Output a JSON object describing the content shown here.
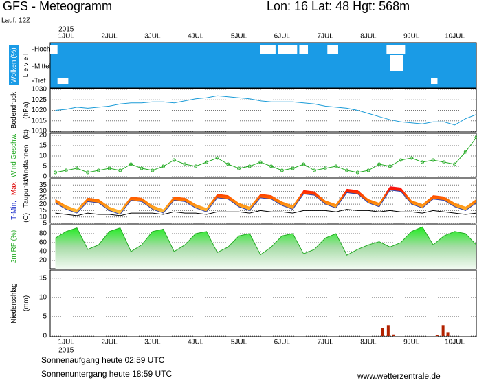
{
  "header": {
    "title": "GFS - Meteogramm",
    "location": "Lon: 16 Lat: 48 Hgt: 568m",
    "run": "Lauf: 12Z"
  },
  "time_axis": {
    "xlim": [
      -0.37,
      9.5
    ],
    "year": "2015",
    "xticks": [
      {
        "value": 0,
        "label": "1JUL"
      },
      {
        "value": 1,
        "label": "2JUL"
      },
      {
        "value": 2,
        "label": "3JUL"
      },
      {
        "value": 3,
        "label": "4JUL"
      },
      {
        "value": 4,
        "label": "5JUL"
      },
      {
        "value": 5,
        "label": "6JUL"
      },
      {
        "value": 6,
        "label": "7JUL"
      },
      {
        "value": 7,
        "label": "8JUL"
      },
      {
        "value": 8,
        "label": "9JUL"
      },
      {
        "value": 9,
        "label": "10JUL"
      }
    ],
    "x": [
      -0.25,
      0,
      0.25,
      0.5,
      0.75,
      1,
      1.25,
      1.5,
      1.75,
      2,
      2.25,
      2.5,
      2.75,
      3,
      3.25,
      3.5,
      3.75,
      4,
      4.25,
      4.5,
      4.75,
      5,
      5.25,
      5.5,
      5.75,
      6,
      6.25,
      6.5,
      6.75,
      7,
      7.25,
      7.5,
      7.75,
      8,
      8.25,
      8.5,
      8.75,
      9,
      9.25,
      9.5
    ]
  },
  "chart_data": [
    {
      "type": "clouds",
      "color": "#1a9be6",
      "patch_color": "#ffffff",
      "axis_labels": [
        [
          {
            "text": "Wolken (%)",
            "color": "#ffffff",
            "background": "#1a9be6"
          }
        ],
        [
          {
            "text": "L e v e l",
            "color": "#000000"
          }
        ]
      ],
      "levels": [
        "Hoch",
        "Mittel",
        "Tief"
      ],
      "patches": [
        {
          "level": 0,
          "start": -0.37,
          "end": -0.2
        },
        {
          "level": 0,
          "start": 4.5,
          "end": 4.85
        },
        {
          "level": 0,
          "start": 4.9,
          "end": 5.35
        },
        {
          "level": 0,
          "start": 5.4,
          "end": 5.6
        },
        {
          "level": 0,
          "start": 6.05,
          "end": 6.3
        },
        {
          "level": 0,
          "start": 7.42,
          "end": 7.85
        },
        {
          "level": 1,
          "start": 7.5,
          "end": 7.8
        },
        {
          "level": 2,
          "start": -0.2,
          "end": 0.05
        },
        {
          "level": 2,
          "start": 8.45,
          "end": 8.6
        }
      ]
    },
    {
      "type": "line",
      "axis_labels": [
        [
          {
            "text": "Bodendruck",
            "color": "#000000"
          }
        ],
        [
          {
            "text": "(hPa)",
            "color": "#000000"
          }
        ]
      ],
      "ylim": [
        1010,
        1030
      ],
      "yticks": [
        1010,
        1015,
        1020,
        1025,
        1030
      ],
      "grid": true,
      "series": [
        {
          "color": "#1a9bd7",
          "values": [
            1020,
            1020.5,
            1021.5,
            1021,
            1021.5,
            1022,
            1023,
            1023.5,
            1023.5,
            1024,
            1024,
            1023.5,
            1024.5,
            1025.5,
            1026,
            1027,
            1026.5,
            1026,
            1025.5,
            1024.5,
            1024,
            1024,
            1024,
            1023.5,
            1023,
            1022,
            1021.5,
            1021,
            1020,
            1018.5,
            1017,
            1015.5,
            1014.5,
            1014,
            1013.5,
            1014.5,
            1014.5,
            1013,
            1016,
            1018
          ]
        }
      ]
    },
    {
      "type": "line",
      "markers": true,
      "axis_labels": [
        [
          {
            "text": "Wind Geschw.",
            "color": "#22aa22"
          }
        ],
        [
          {
            "text": "Windfahnen",
            "color": "#000000"
          },
          {
            "text": "(kt)",
            "color": "#000000"
          }
        ]
      ],
      "ylim": [
        0,
        20
      ],
      "yticks": [
        0,
        5,
        10,
        15,
        20
      ],
      "grid": true,
      "series": [
        {
          "color": "#22aa22",
          "values": [
            2,
            3,
            4,
            2,
            3,
            4,
            3,
            6,
            4,
            3,
            5,
            8,
            6,
            5,
            7,
            9,
            6,
            4,
            5,
            7,
            5,
            3,
            4,
            6,
            3,
            4,
            5,
            3,
            2,
            3,
            6,
            5,
            8,
            9,
            7,
            8,
            7,
            6,
            12,
            19
          ]
        }
      ]
    },
    {
      "type": "band",
      "axis_labels": [
        [
          {
            "text": "T-Min,",
            "color": "#2233cc"
          },
          {
            "text": "Max",
            "color": "#dd0000"
          }
        ],
        [
          {
            "text": "(C)",
            "color": "#000000"
          },
          {
            "text": "Taupunkt",
            "color": "#000000"
          }
        ]
      ],
      "ylim": [
        5,
        40
      ],
      "yticks": [
        5,
        10,
        15,
        20,
        25,
        30,
        35
      ],
      "grid": true,
      "low_color": "#3344aa",
      "dew_color": "#000000",
      "high": [
        24,
        19,
        16,
        25,
        24,
        18,
        15,
        26,
        25,
        19,
        16,
        26,
        25,
        20,
        17,
        28,
        27,
        21,
        18,
        28,
        27,
        22,
        19,
        31,
        30,
        23,
        20,
        32,
        31,
        24,
        21,
        34,
        33,
        23,
        20,
        27,
        26,
        21,
        18,
        24
      ],
      "low": [
        21,
        16,
        13,
        22,
        21,
        15,
        12,
        23,
        22,
        16,
        13,
        23,
        22,
        17,
        14,
        25,
        24,
        18,
        15,
        25,
        24,
        19,
        16,
        28,
        27,
        20,
        17,
        29,
        28,
        21,
        18,
        31,
        30,
        20,
        17,
        24,
        23,
        18,
        15,
        21
      ],
      "dewpoint": [
        13,
        12,
        11,
        13,
        12,
        12,
        11,
        13,
        13,
        13,
        12,
        14,
        13,
        13,
        12,
        14,
        14,
        14,
        13,
        15,
        14,
        14,
        13,
        15,
        15,
        15,
        14,
        16,
        15,
        15,
        14,
        15,
        14,
        14,
        13,
        15,
        14,
        13,
        12,
        13
      ]
    },
    {
      "type": "area",
      "axis_labels": [
        [
          {
            "text": "2m RF (%)",
            "color": "#22aa22"
          }
        ]
      ],
      "ylim": [
        0,
        100
      ],
      "yticks": [
        20,
        40,
        60,
        80
      ],
      "grid": true,
      "color": "#22aa22",
      "values": [
        70,
        85,
        93,
        45,
        55,
        85,
        93,
        40,
        55,
        85,
        90,
        40,
        55,
        80,
        85,
        38,
        50,
        75,
        80,
        33,
        50,
        75,
        80,
        35,
        45,
        70,
        80,
        32,
        45,
        55,
        62,
        50,
        60,
        85,
        95,
        55,
        75,
        85,
        80,
        55
      ]
    },
    {
      "type": "bars",
      "axis_labels": [
        [
          {
            "text": "Niederschlag",
            "color": "#000000"
          }
        ],
        [
          {
            "text": "(mm)",
            "color": "#000000"
          }
        ]
      ],
      "ylim": [
        0,
        17.1
      ],
      "yticks": [
        0,
        5,
        10,
        15
      ],
      "grid": true,
      "color": "#b22200",
      "x": [
        7.33,
        7.46,
        7.59,
        8.59,
        8.73,
        8.84
      ],
      "values": [
        2,
        2.8,
        0.4,
        0.3,
        2.8,
        1
      ]
    }
  ],
  "footer": {
    "sunrise": "Sonnenaufgang heute 02:59 UTC",
    "sunset": "Sonnenuntergang heute 18:59 UTC",
    "url": "www.wetterzentrale.de"
  }
}
